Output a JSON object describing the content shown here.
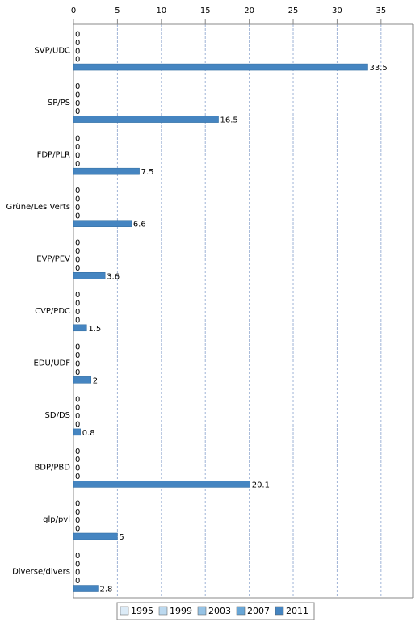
{
  "chart_data": {
    "type": "bar",
    "orientation": "horizontal",
    "categories": [
      "SVP/UDC",
      "SP/PS",
      "FDP/PLR",
      "Grüne/Les Verts",
      "EVP/PEV",
      "CVP/PDC",
      "EDU/UDF",
      "SD/DS",
      "BDP/PBD",
      "glp/pvl",
      "Diverse/divers"
    ],
    "series": [
      {
        "name": "1995",
        "color": "#dcebf7",
        "values": [
          0,
          0,
          0,
          0,
          0,
          0,
          0,
          0,
          0,
          0,
          0
        ]
      },
      {
        "name": "1999",
        "color": "#bcd9ef",
        "values": [
          0,
          0,
          0,
          0,
          0,
          0,
          0,
          0,
          0,
          0,
          0
        ]
      },
      {
        "name": "2003",
        "color": "#96c3e5",
        "values": [
          0,
          0,
          0,
          0,
          0,
          0,
          0,
          0,
          0,
          0,
          0
        ]
      },
      {
        "name": "2007",
        "color": "#68a6d6",
        "values": [
          0,
          0,
          0,
          0,
          0,
          0,
          0,
          0,
          0,
          0,
          0
        ]
      },
      {
        "name": "2011",
        "color": "#4585c1",
        "values": [
          33.5,
          16.5,
          7.5,
          6.6,
          3.6,
          1.5,
          2,
          0.8,
          20.1,
          5,
          2.8
        ]
      }
    ],
    "xlim": [
      0,
      38.6
    ],
    "xticks": [
      0,
      5,
      10,
      15,
      20,
      25,
      30,
      35
    ],
    "grid": true,
    "legend": "bottom"
  }
}
